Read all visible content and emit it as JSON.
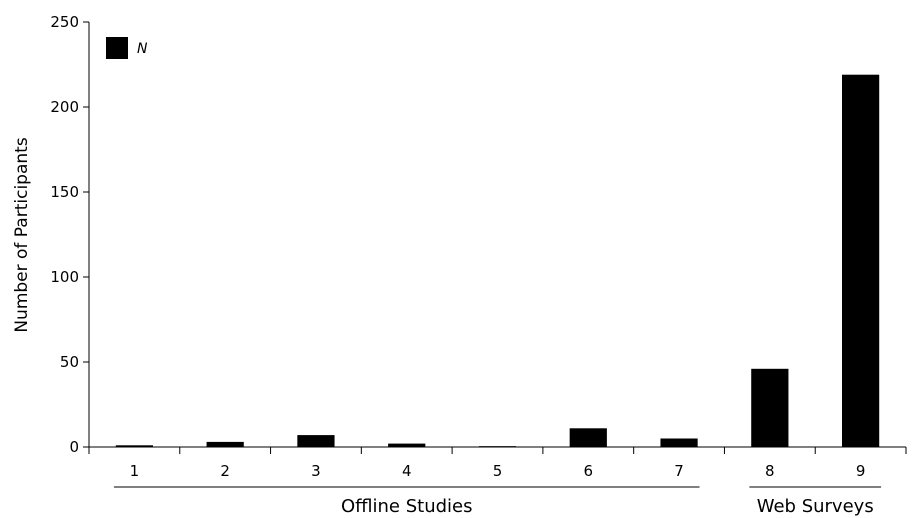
{
  "chart_data": {
    "type": "bar",
    "categories": [
      "1",
      "2",
      "3",
      "4",
      "5",
      "6",
      "7",
      "8",
      "9"
    ],
    "series": [
      {
        "name": "N",
        "values": [
          1,
          3,
          7,
          2,
          0.5,
          11,
          5,
          46,
          219
        ],
        "color": "#000000"
      }
    ],
    "ylabel": "Number of Participants",
    "ylim": [
      0,
      250
    ],
    "yticks": [
      0,
      50,
      100,
      150,
      200,
      250
    ],
    "groups": [
      {
        "label": "Offline Studies",
        "categories": [
          "1",
          "2",
          "3",
          "4",
          "5",
          "6",
          "7"
        ]
      },
      {
        "label": "Web Surveys",
        "categories": [
          "8",
          "9"
        ]
      }
    ],
    "legend": {
      "position": "top-left",
      "entries": [
        "N"
      ]
    },
    "grid": false
  }
}
